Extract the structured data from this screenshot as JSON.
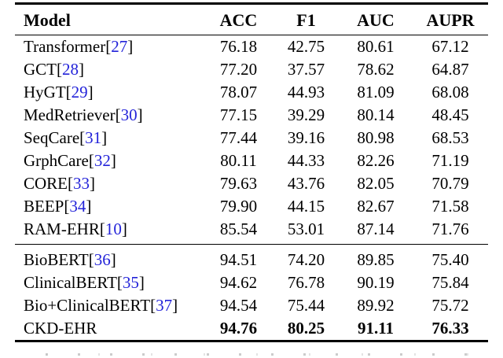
{
  "table": {
    "columns": [
      "Model",
      "ACC",
      "F1",
      "AUC",
      "AUPR"
    ],
    "sections": [
      {
        "name": "baselines",
        "rows": [
          {
            "model": "Transformer",
            "ref": "27",
            "values": [
              "76.18",
              "42.75",
              "80.61",
              "67.12"
            ],
            "bold": false
          },
          {
            "model": "GCT",
            "ref": "28",
            "values": [
              "77.20",
              "37.57",
              "78.62",
              "64.87"
            ],
            "bold": false
          },
          {
            "model": "HyGT",
            "ref": "29",
            "values": [
              "78.07",
              "44.93",
              "81.09",
              "68.08"
            ],
            "bold": false
          },
          {
            "model": "MedRetriever",
            "ref": "30",
            "values": [
              "77.15",
              "39.29",
              "80.14",
              "48.45"
            ],
            "bold": false
          },
          {
            "model": "SeqCare",
            "ref": "31",
            "values": [
              "77.44",
              "39.16",
              "80.98",
              "68.53"
            ],
            "bold": false
          },
          {
            "model": "GrphCare",
            "ref": "32",
            "values": [
              "80.11",
              "44.33",
              "82.26",
              "71.19"
            ],
            "bold": false
          },
          {
            "model": "CORE",
            "ref": "33",
            "values": [
              "79.63",
              "43.76",
              "82.05",
              "70.79"
            ],
            "bold": false
          },
          {
            "model": "BEEP",
            "ref": "34",
            "values": [
              "79.90",
              "44.15",
              "82.67",
              "71.58"
            ],
            "bold": false
          },
          {
            "model": "RAM-EHR",
            "ref": "10",
            "values": [
              "85.54",
              "53.01",
              "87.14",
              "71.76"
            ],
            "bold": false
          }
        ]
      },
      {
        "name": "bert-variants",
        "rows": [
          {
            "model": "BioBERT",
            "ref": "36",
            "values": [
              "94.51",
              "74.20",
              "89.85",
              "75.40"
            ],
            "bold": false
          },
          {
            "model": "ClinicalBERT",
            "ref": "35",
            "values": [
              "94.62",
              "76.78",
              "90.19",
              "75.84"
            ],
            "bold": false
          },
          {
            "model": "Bio+ClinicalBERT",
            "ref": "37",
            "values": [
              "94.54",
              "75.44",
              "89.92",
              "75.72"
            ],
            "bold": false
          },
          {
            "model": "CKD-EHR",
            "ref": null,
            "values": [
              "94.76",
              "80.25",
              "91.11",
              "76.33"
            ],
            "bold": true
          }
        ]
      }
    ]
  },
  "colors": {
    "citation_blue": "#2323D9",
    "text": "#000000",
    "rule": "#000000"
  }
}
